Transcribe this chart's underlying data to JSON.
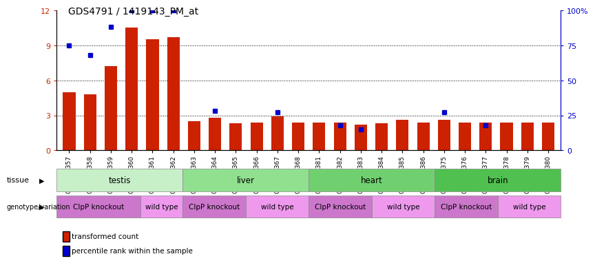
{
  "title": "GDS4791 / 1419143_PM_at",
  "samples": [
    "GSM988357",
    "GSM988358",
    "GSM988359",
    "GSM988360",
    "GSM988361",
    "GSM988362",
    "GSM988363",
    "GSM988364",
    "GSM988365",
    "GSM988366",
    "GSM988367",
    "GSM988368",
    "GSM988381",
    "GSM988382",
    "GSM988383",
    "GSM988384",
    "GSM988385",
    "GSM988386",
    "GSM988375",
    "GSM988376",
    "GSM988377",
    "GSM988378",
    "GSM988379",
    "GSM988380"
  ],
  "red_bars": [
    5.0,
    4.8,
    7.2,
    10.5,
    9.5,
    9.7,
    2.5,
    2.8,
    2.3,
    2.4,
    2.9,
    2.4,
    2.4,
    2.4,
    2.2,
    2.3,
    2.6,
    2.4,
    2.6,
    2.4,
    2.4,
    2.4,
    2.4,
    2.4
  ],
  "blue_markers": [
    75,
    68,
    88,
    100,
    100,
    100,
    null,
    28,
    null,
    null,
    27,
    null,
    null,
    18,
    15,
    null,
    null,
    null,
    27,
    null,
    18,
    null,
    null,
    null
  ],
  "tissue_groups": [
    {
      "label": "testis",
      "start": 0,
      "end": 6,
      "color": "#c8f0c8"
    },
    {
      "label": "liver",
      "start": 6,
      "end": 12,
      "color": "#90e090"
    },
    {
      "label": "heart",
      "start": 12,
      "end": 18,
      "color": "#70d070"
    },
    {
      "label": "brain",
      "start": 18,
      "end": 24,
      "color": "#50c050"
    }
  ],
  "genotype_groups": [
    {
      "label": "ClpP knockout",
      "start": 0,
      "end": 4,
      "color": "#cc77cc"
    },
    {
      "label": "wild type",
      "start": 4,
      "end": 6,
      "color": "#ee99ee"
    },
    {
      "label": "ClpP knockout",
      "start": 6,
      "end": 9,
      "color": "#cc77cc"
    },
    {
      "label": "wild type",
      "start": 9,
      "end": 12,
      "color": "#ee99ee"
    },
    {
      "label": "ClpP knockout",
      "start": 12,
      "end": 15,
      "color": "#cc77cc"
    },
    {
      "label": "wild type",
      "start": 15,
      "end": 18,
      "color": "#ee99ee"
    },
    {
      "label": "ClpP knockout",
      "start": 18,
      "end": 21,
      "color": "#cc77cc"
    },
    {
      "label": "wild type",
      "start": 21,
      "end": 24,
      "color": "#ee99ee"
    }
  ],
  "ylim_left": [
    0,
    12
  ],
  "ylim_right": [
    0,
    100
  ],
  "yticks_left": [
    0,
    3,
    6,
    9,
    12
  ],
  "yticks_right": [
    0,
    25,
    50,
    75,
    100
  ],
  "ytick_labels_right": [
    "0",
    "25",
    "50",
    "75",
    "100%"
  ],
  "bar_color": "#cc2200",
  "marker_color": "#0000cc",
  "bar_width": 0.6,
  "grid_lines": [
    3,
    6,
    9
  ],
  "n_samples": 24
}
